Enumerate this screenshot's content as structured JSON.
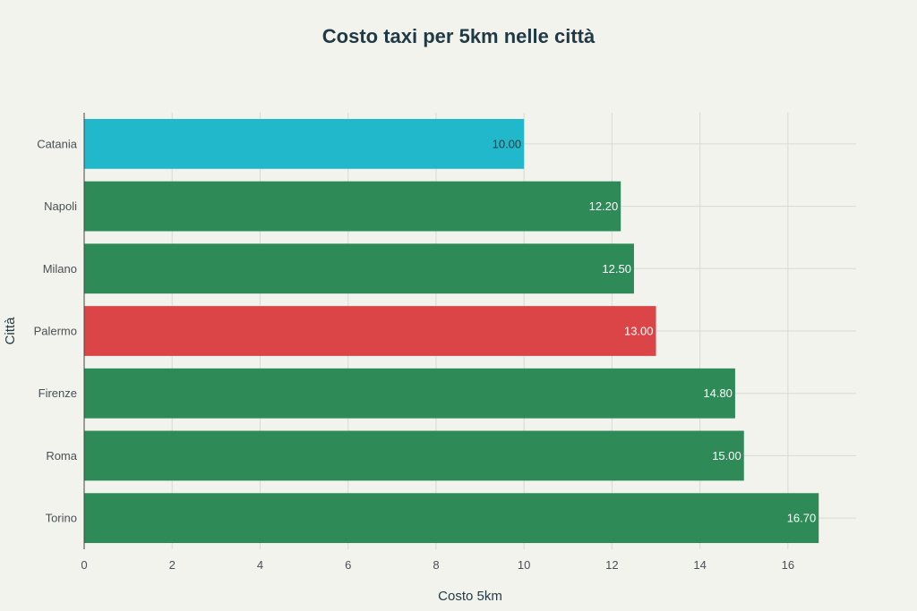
{
  "chart_data": {
    "type": "bar",
    "orientation": "horizontal",
    "title": "Costo taxi per 5km nelle città",
    "xlabel": "Costo 5km",
    "ylabel": "Città",
    "categories": [
      "Catania",
      "Napoli",
      "Milano",
      "Palermo",
      "Firenze",
      "Roma",
      "Torino"
    ],
    "values": [
      10.0,
      12.2,
      12.5,
      13.0,
      14.8,
      15.0,
      16.7
    ],
    "value_labels": [
      "10.00",
      "12.20",
      "12.50",
      "13.00",
      "14.80",
      "15.00",
      "16.70"
    ],
    "bar_colors": [
      "#22b8cc",
      "#2e8a57",
      "#2e8a57",
      "#db4548",
      "#2e8a57",
      "#2e8a57",
      "#2e8a57"
    ],
    "label_colors": [
      "#2d3a40",
      "#ffffff",
      "#ffffff",
      "#ffffff",
      "#ffffff",
      "#ffffff",
      "#ffffff"
    ],
    "xlim": [
      0,
      17.55
    ],
    "xticks": [
      0,
      2,
      4,
      6,
      8,
      10,
      12,
      14,
      16
    ],
    "grid": true,
    "legend": "none",
    "background": "#f3f3ee"
  }
}
